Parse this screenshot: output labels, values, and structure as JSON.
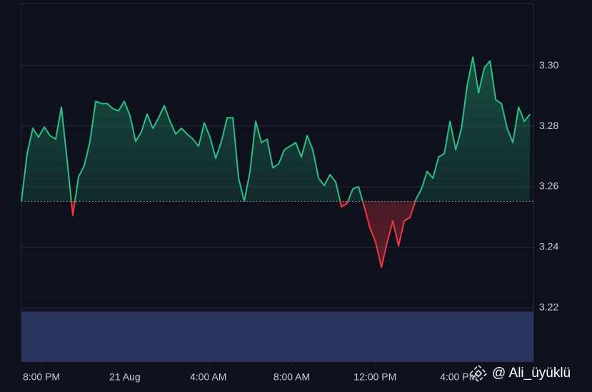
{
  "chart_data": {
    "type": "baseline-line",
    "values": [
      3.2552,
      3.271,
      3.2793,
      3.2764,
      3.2797,
      3.2769,
      3.2757,
      3.2863,
      3.2687,
      3.2505,
      3.2633,
      3.267,
      3.275,
      3.2882,
      3.2875,
      3.2875,
      3.2858,
      3.2851,
      3.2882,
      3.2835,
      3.275,
      3.2781,
      3.284,
      3.2793,
      3.2828,
      3.2868,
      3.2816,
      3.2774,
      3.2793,
      3.2774,
      3.2757,
      3.2734,
      3.2811,
      3.2764,
      3.2694,
      3.275,
      3.2828,
      3.2828,
      3.2628,
      3.2552,
      3.2651,
      3.2816,
      3.2746,
      3.2757,
      3.2663,
      3.2675,
      3.2722,
      3.2734,
      3.2746,
      3.2698,
      3.2769,
      3.2722,
      3.2628,
      3.2604,
      3.264,
      3.2616,
      3.2534,
      3.2545,
      3.2593,
      3.26,
      3.2534,
      3.2464,
      3.2416,
      3.2334,
      3.2416,
      3.2487,
      3.2405,
      3.2487,
      3.2499,
      3.2557,
      3.2593,
      3.2651,
      3.2628,
      3.2698,
      3.271,
      3.2816,
      3.2722,
      3.2793,
      3.2934,
      3.3028,
      3.291,
      3.2993,
      3.3016,
      3.2887,
      3.2875,
      3.2793,
      3.2746,
      3.2863,
      3.2816,
      3.284
    ],
    "baseline": 3.2552,
    "up_color": "#2ebd85",
    "down_color": "#f23645",
    "xlim": [
      0,
      89.6
    ],
    "xticks": [
      {
        "value": 3.5,
        "label": "8:00 PM"
      },
      {
        "value": 18.1,
        "label": "21 Aug"
      },
      {
        "value": 32.7,
        "label": "4:00 AM"
      },
      {
        "value": 47.3,
        "label": "8:00 AM"
      },
      {
        "value": 61.9,
        "label": "12:00 PM"
      },
      {
        "value": 76.5,
        "label": "4:00 PM"
      }
    ],
    "ylim": [
      3.2021,
      3.3205
    ],
    "yticks": [
      {
        "value": 3.22,
        "label": "3.22"
      },
      {
        "value": 3.24,
        "label": "3.24"
      },
      {
        "value": 3.26,
        "label": "3.26"
      },
      {
        "value": 3.28,
        "label": "3.28"
      },
      {
        "value": 3.3,
        "label": "3.30"
      }
    ],
    "grid": true,
    "watermark": "@ Ali_üyüklü"
  }
}
